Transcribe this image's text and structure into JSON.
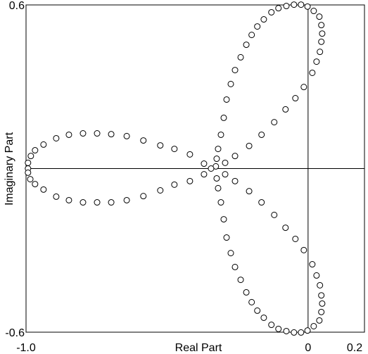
{
  "chart_data": {
    "type": "scatter",
    "xlabel": "Real Part",
    "ylabel": "Imaginary Part",
    "xlim": [
      -1.0,
      0.2
    ],
    "ylim": [
      -0.6,
      0.6
    ],
    "xticks": [
      {
        "value": -1.0,
        "label": "-1.0"
      },
      0,
      0.2
    ],
    "yticks": [
      -0.6,
      0.6
    ],
    "marker_color": "#000000",
    "x": [
      -0.327,
      -0.369,
      -0.419,
      -0.474,
      -0.524,
      -0.584,
      -0.643,
      -0.698,
      -0.748,
      -0.798,
      -0.848,
      -0.893,
      -0.938,
      -0.968,
      -0.983,
      -0.993,
      -0.993,
      -0.993,
      -0.985,
      -0.968,
      -0.938,
      -0.893,
      -0.848,
      -0.798,
      -0.748,
      -0.698,
      -0.643,
      -0.584,
      -0.524,
      -0.474,
      -0.419,
      -0.369,
      -0.344,
      -0.324,
      -0.319,
      -0.309,
      -0.299,
      -0.289,
      -0.274,
      -0.259,
      -0.239,
      -0.219,
      -0.2,
      -0.18,
      -0.157,
      -0.13,
      -0.105,
      -0.077,
      -0.05,
      -0.025,
      -0.002,
      0.02,
      0.04,
      0.047,
      0.05,
      0.047,
      0.042,
      0.03,
      0.015,
      -0.015,
      -0.045,
      -0.08,
      -0.12,
      -0.165,
      -0.209,
      -0.259,
      -0.294,
      -0.324,
      -0.319,
      -0.309,
      -0.299,
      -0.289,
      -0.274,
      -0.259,
      -0.239,
      -0.219,
      -0.2,
      -0.18,
      -0.157,
      -0.13,
      -0.105,
      -0.077,
      -0.05,
      -0.025,
      -0.002,
      0.02,
      0.04,
      0.047,
      0.05,
      0.047,
      0.042,
      0.03,
      0.015,
      -0.015,
      -0.045,
      -0.08,
      -0.12,
      -0.165,
      -0.209,
      -0.259,
      -0.294
    ],
    "y": [
      0.008,
      0.018,
      0.052,
      0.072,
      0.085,
      0.103,
      0.119,
      0.126,
      0.129,
      0.129,
      0.124,
      0.111,
      0.088,
      0.067,
      0.046,
      0.021,
      0,
      -0.015,
      -0.039,
      -0.057,
      -0.077,
      -0.103,
      -0.116,
      -0.124,
      -0.124,
      -0.124,
      -0.116,
      -0.101,
      -0.08,
      -0.059,
      -0.046,
      -0.021,
      0,
      0.036,
      0.072,
      0.124,
      0.186,
      0.253,
      0.31,
      0.361,
      0.408,
      0.454,
      0.49,
      0.521,
      0.547,
      0.573,
      0.588,
      0.596,
      0.601,
      0.601,
      0.594,
      0.578,
      0.557,
      0.526,
      0.495,
      0.465,
      0.428,
      0.392,
      0.351,
      0.299,
      0.258,
      0.217,
      0.17,
      0.124,
      0.083,
      0.046,
      0.021,
      -0.036,
      -0.072,
      -0.124,
      -0.186,
      -0.253,
      -0.31,
      -0.361,
      -0.408,
      -0.454,
      -0.49,
      -0.521,
      -0.547,
      -0.573,
      -0.588,
      -0.596,
      -0.601,
      -0.601,
      -0.594,
      -0.578,
      -0.557,
      -0.526,
      -0.495,
      -0.465,
      -0.428,
      -0.392,
      -0.351,
      -0.299,
      -0.258,
      -0.217,
      -0.17,
      -0.124,
      -0.083,
      -0.046,
      -0.021
    ]
  }
}
